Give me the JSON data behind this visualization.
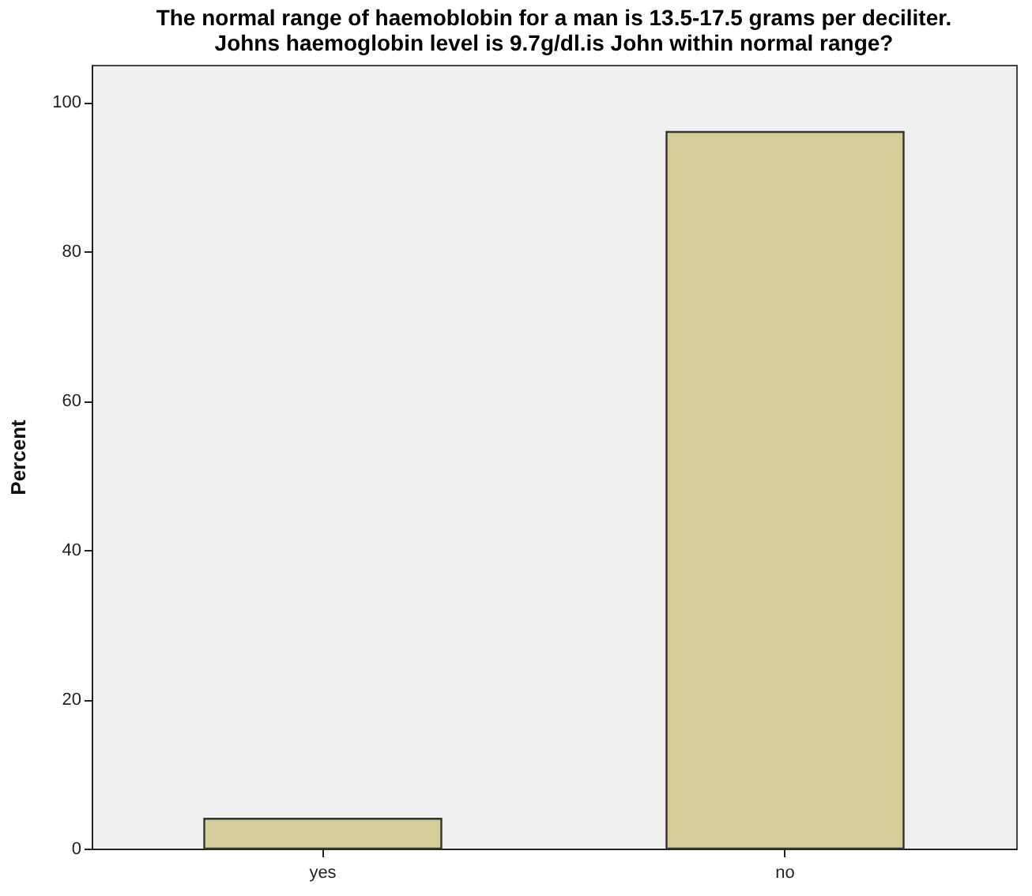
{
  "chart_data": {
    "type": "bar",
    "title": "The normal range of haemoblobin for a man is 13.5-17.5 grams per deciliter.\nJohns haemoglobin level is 9.7g/dl.is John within normal range?",
    "categories": [
      "yes",
      "no"
    ],
    "values": [
      4,
      96
    ],
    "color": "#d3ce97",
    "ylabel": "Percent",
    "ylim": [
      0,
      105
    ],
    "yticks": [
      0,
      20,
      40,
      60,
      80,
      100
    ],
    "grid": false
  }
}
